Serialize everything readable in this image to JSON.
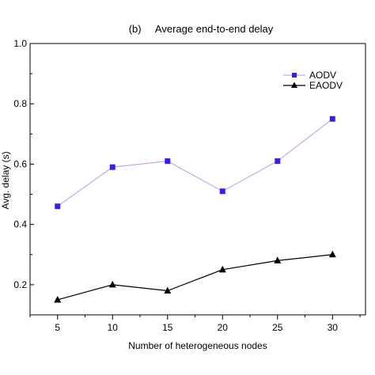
{
  "chart_data": {
    "type": "line",
    "title": "(b)     Average end-to-end delay",
    "xlabel": "Number of heterogeneous nodes",
    "ylabel": "Avg. delay (s)",
    "x": [
      5,
      10,
      15,
      20,
      25,
      30
    ],
    "xlim": [
      2.5,
      33
    ],
    "ylim": [
      0.1,
      1.0
    ],
    "xticks": [
      5,
      10,
      15,
      20,
      25,
      30
    ],
    "yticks": [
      0.2,
      0.4,
      0.6,
      0.8,
      1.0
    ],
    "ytick_labels": [
      "0.2",
      "0.4",
      "0.6",
      "0.8",
      "1.0"
    ],
    "legend_position": "top-right",
    "grid": false,
    "series": [
      {
        "name": "AODV",
        "values": [
          0.46,
          0.59,
          0.61,
          0.51,
          0.61,
          0.75
        ],
        "line_color": "#c8a8ea",
        "marker": "square",
        "marker_color": "#3b1cf0"
      },
      {
        "name": "EAODV",
        "values": [
          0.15,
          0.2,
          0.18,
          0.25,
          0.28,
          0.3
        ],
        "line_color": "#000000",
        "marker": "triangle",
        "marker_color": "#000000"
      }
    ]
  }
}
